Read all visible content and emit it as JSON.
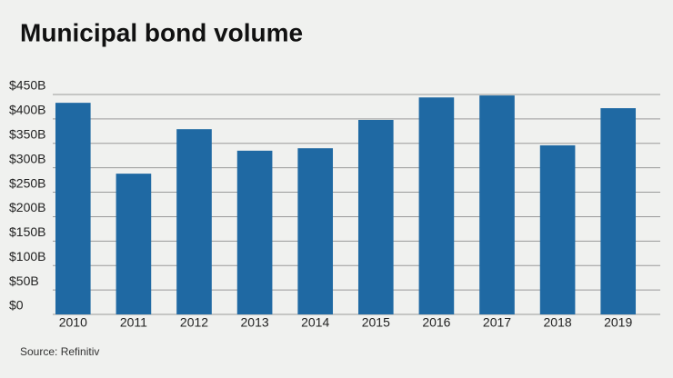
{
  "chart_data": {
    "type": "bar",
    "title": "Municipal bond volume",
    "source": "Source: Refinitiv",
    "categories": [
      "2010",
      "2011",
      "2012",
      "2013",
      "2014",
      "2015",
      "2016",
      "2017",
      "2018",
      "2019"
    ],
    "values": [
      433,
      288,
      379,
      335,
      340,
      398,
      444,
      448,
      346,
      422
    ],
    "color": "#1f69a3",
    "ylim": [
      0,
      450
    ],
    "yticks": [
      {
        "value": 0,
        "label": "$0"
      },
      {
        "value": 50,
        "label": "$50B"
      },
      {
        "value": 100,
        "label": "$100B"
      },
      {
        "value": 150,
        "label": "$150B"
      },
      {
        "value": 200,
        "label": "$200B"
      },
      {
        "value": 250,
        "label": "$250B"
      },
      {
        "value": 300,
        "label": "$300B"
      },
      {
        "value": 350,
        "label": "$350B"
      },
      {
        "value": 400,
        "label": "$400B"
      },
      {
        "value": 450,
        "label": "$450B"
      }
    ],
    "grid": true
  }
}
